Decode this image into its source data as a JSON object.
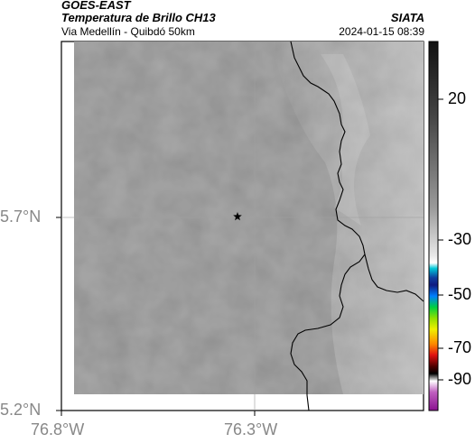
{
  "header": {
    "satellite": "GOES-EAST",
    "product": "Temperatura de Brillo CH13",
    "subtitle": "Via Medellín - Quibdó 50km",
    "source": "SIATA",
    "datetime": "2024-01-15 08:39"
  },
  "map": {
    "lat_labels": [
      "5.7°N",
      "5.2°N"
    ],
    "lon_labels": [
      "76.8°W",
      "76.3°W"
    ],
    "marker_icon": "star-icon",
    "colors": {
      "cloud_base": "#7a7a7a",
      "border": "#000000",
      "gridline": "#a0a0a0"
    }
  },
  "colorbar": {
    "ticks": [
      "20",
      "-30",
      "-50",
      "-70",
      "-90"
    ],
    "stops": [
      {
        "t": 0.0,
        "c": "#111111"
      },
      {
        "t": 0.2,
        "c": "#444444"
      },
      {
        "t": 0.45,
        "c": "#9a9a9a"
      },
      {
        "t": 0.58,
        "c": "#e8e8e8"
      },
      {
        "t": 0.6,
        "c": "#ffffff"
      },
      {
        "t": 0.615,
        "c": "#00c8d8"
      },
      {
        "t": 0.64,
        "c": "#1040a0"
      },
      {
        "t": 0.66,
        "c": "#101a80"
      },
      {
        "t": 0.69,
        "c": "#0080ff"
      },
      {
        "t": 0.72,
        "c": "#00d040"
      },
      {
        "t": 0.75,
        "c": "#90e000"
      },
      {
        "t": 0.78,
        "c": "#f0f000"
      },
      {
        "t": 0.82,
        "c": "#ff8800"
      },
      {
        "t": 0.85,
        "c": "#e01010"
      },
      {
        "t": 0.88,
        "c": "#500000"
      },
      {
        "t": 0.9,
        "c": "#000000"
      },
      {
        "t": 0.92,
        "c": "#ffffff"
      },
      {
        "t": 0.95,
        "c": "#c060c0"
      },
      {
        "t": 1.0,
        "c": "#8a1090"
      }
    ]
  }
}
